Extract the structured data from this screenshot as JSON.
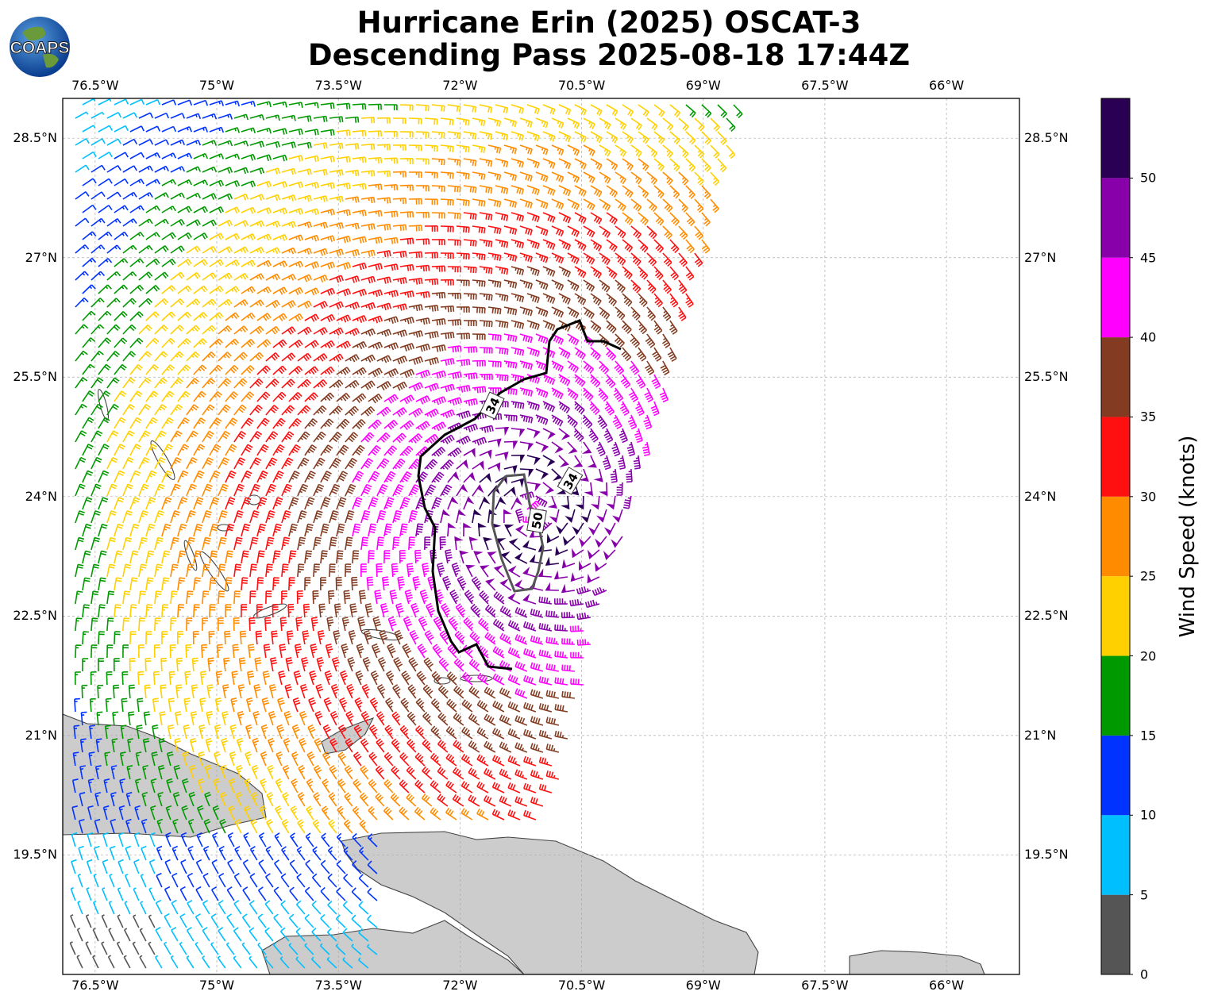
{
  "title": {
    "line1": "Hurricane Erin (2025) OSCAT-3",
    "line2": "Descending Pass 2025-08-18 17:44Z"
  },
  "logo": {
    "text": "COAPS"
  },
  "map": {
    "lon_range": [
      -76.9,
      -65.1
    ],
    "lat_range": [
      18.0,
      29.0
    ],
    "lon_ticks": [
      -76.5,
      -75,
      -73.5,
      -72,
      -70.5,
      -69,
      -67.5,
      -66
    ],
    "lon_labels": [
      "76.5°W",
      "75°W",
      "73.5°W",
      "72°W",
      "70.5°W",
      "69°W",
      "67.5°W",
      "66°W"
    ],
    "lat_ticks": [
      28.5,
      27,
      25.5,
      24,
      22.5,
      21,
      19.5
    ],
    "lat_labels": [
      "28.5°N",
      "27°N",
      "25.5°N",
      "24°N",
      "22.5°N",
      "21°N",
      "19.5°N"
    ],
    "storm_center": {
      "lon": -71.1,
      "lat": 23.8
    },
    "contours": [
      {
        "label": "34",
        "color": "#000000"
      },
      {
        "label": "34",
        "color": "#000000"
      },
      {
        "label": "50",
        "color": "#555555"
      }
    ],
    "land_color": "#cccccc",
    "grid": true
  },
  "colorbar": {
    "label": "Wind Speed (knots)",
    "ticks": [
      "0",
      "5",
      "10",
      "15",
      "20",
      "25",
      "30",
      "35",
      "40",
      "45",
      "50"
    ],
    "bins": [
      {
        "min": 0,
        "max": 5,
        "color": "#555555"
      },
      {
        "min": 5,
        "max": 10,
        "color": "#00bfff"
      },
      {
        "min": 10,
        "max": 15,
        "color": "#0033ff"
      },
      {
        "min": 15,
        "max": 20,
        "color": "#009900"
      },
      {
        "min": 20,
        "max": 25,
        "color": "#ffd000"
      },
      {
        "min": 25,
        "max": 30,
        "color": "#ff8c00"
      },
      {
        "min": 30,
        "max": 35,
        "color": "#ff1010"
      },
      {
        "min": 35,
        "max": 40,
        "color": "#833c22"
      },
      {
        "min": 40,
        "max": 45,
        "color": "#ff00ff"
      },
      {
        "min": 45,
        "max": 50,
        "color": "#8800aa"
      },
      {
        "min": 50,
        "max": 55,
        "color": "#2a0055"
      }
    ]
  }
}
